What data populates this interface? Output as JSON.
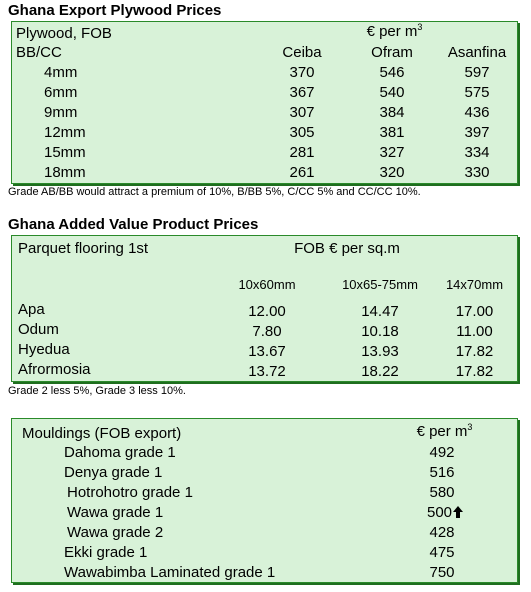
{
  "plywood": {
    "heading": "Ghana Export Plywood Prices",
    "title_left": "Plywood, FOB",
    "unit_main": "€ per m",
    "unit_sup": "3",
    "grade_label": "BB/CC",
    "columns": [
      "Ceiba",
      "Ofram",
      "Asanfina"
    ],
    "rows": [
      {
        "size": "4mm",
        "values": [
          "370",
          "546",
          "597"
        ]
      },
      {
        "size": "6mm",
        "values": [
          "367",
          "540",
          "575"
        ]
      },
      {
        "size": "9mm",
        "values": [
          "307",
          "384",
          "436"
        ]
      },
      {
        "size": "12mm",
        "values": [
          "305",
          "381",
          "397"
        ]
      },
      {
        "size": "15mm",
        "values": [
          "281",
          "327",
          "334"
        ]
      },
      {
        "size": "18mm",
        "values": [
          "261",
          "320",
          "330"
        ]
      }
    ],
    "note": "Grade AB/BB would attract a premium of 10%, B/BB 5%, C/CC 5% and CC/CC 10%."
  },
  "added_value": {
    "heading": "Ghana Added Value Product Prices",
    "product": "Parquet flooring 1st",
    "unit": "FOB € per sq.m",
    "columns": [
      "10x60mm",
      "10x65-75mm",
      "14x70mm"
    ],
    "rows": [
      {
        "species": "Apa",
        "values": [
          "12.00",
          "14.47",
          "17.00"
        ]
      },
      {
        "species": "Odum",
        "values": [
          "7.80",
          "10.18",
          "11.00"
        ]
      },
      {
        "species": "Hyedua",
        "values": [
          "13.67",
          "13.93",
          "17.82"
        ]
      },
      {
        "species": "Afrormosia",
        "values": [
          "13.72",
          "18.22",
          "17.82"
        ]
      }
    ],
    "note": "Grade 2 less 5%, Grade 3 less 10%."
  },
  "mouldings": {
    "title": "Mouldings (FOB export)",
    "unit_main": "€ per m",
    "unit_sup": "3",
    "up_arrow_icon": "arrow-up",
    "rows": [
      {
        "name": "Dahoma grade 1",
        "value": "492"
      },
      {
        "name": "Denya grade 1",
        "value": "516"
      },
      {
        "name": "Hotrohotro grade 1",
        "value": "580"
      },
      {
        "name": "Wawa grade 1",
        "value": "500",
        "trend": "up"
      },
      {
        "name": "Wawa grade 2",
        "value": "428"
      },
      {
        "name": "Ekki grade 1",
        "value": "475"
      },
      {
        "name": "Wawabimba Laminated grade 1",
        "value": "750"
      }
    ]
  }
}
